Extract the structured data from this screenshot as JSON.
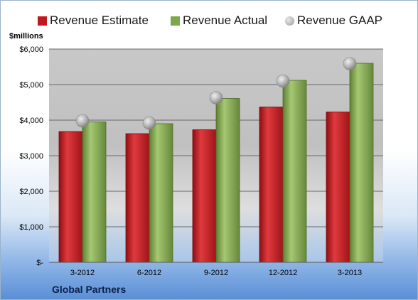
{
  "page": {
    "unit_label": "$millions",
    "footer_title": "Global Partners"
  },
  "colors": {
    "estimate": "#c0181e",
    "actual": "#7ea64a",
    "gaap": "#a8a8a8"
  },
  "chart_data": {
    "type": "bar",
    "title": "",
    "xlabel": "",
    "ylabel": "$millions",
    "categories": [
      "3-2012",
      "6-2012",
      "9-2012",
      "12-2012",
      "3-2013"
    ],
    "series": [
      {
        "name": "Revenue Estimate",
        "kind": "bar",
        "values": [
          3680,
          3620,
          3730,
          4370,
          4230
        ]
      },
      {
        "name": "Revenue Actual",
        "kind": "bar",
        "values": [
          3950,
          3900,
          4610,
          5120,
          5600
        ]
      },
      {
        "name": "Revenue GAAP",
        "kind": "scatter",
        "values": [
          3980,
          3920,
          4630,
          5100,
          5590
        ]
      }
    ],
    "ylim": [
      0,
      6000
    ],
    "yticks": [
      0,
      1000,
      2000,
      3000,
      4000,
      5000,
      6000
    ],
    "ytick_labels": [
      "$-",
      "$1,000",
      "$2,000",
      "$3,000",
      "$4,000",
      "$5,000",
      "$6,000"
    ],
    "grid": true,
    "legend_position": "top"
  }
}
